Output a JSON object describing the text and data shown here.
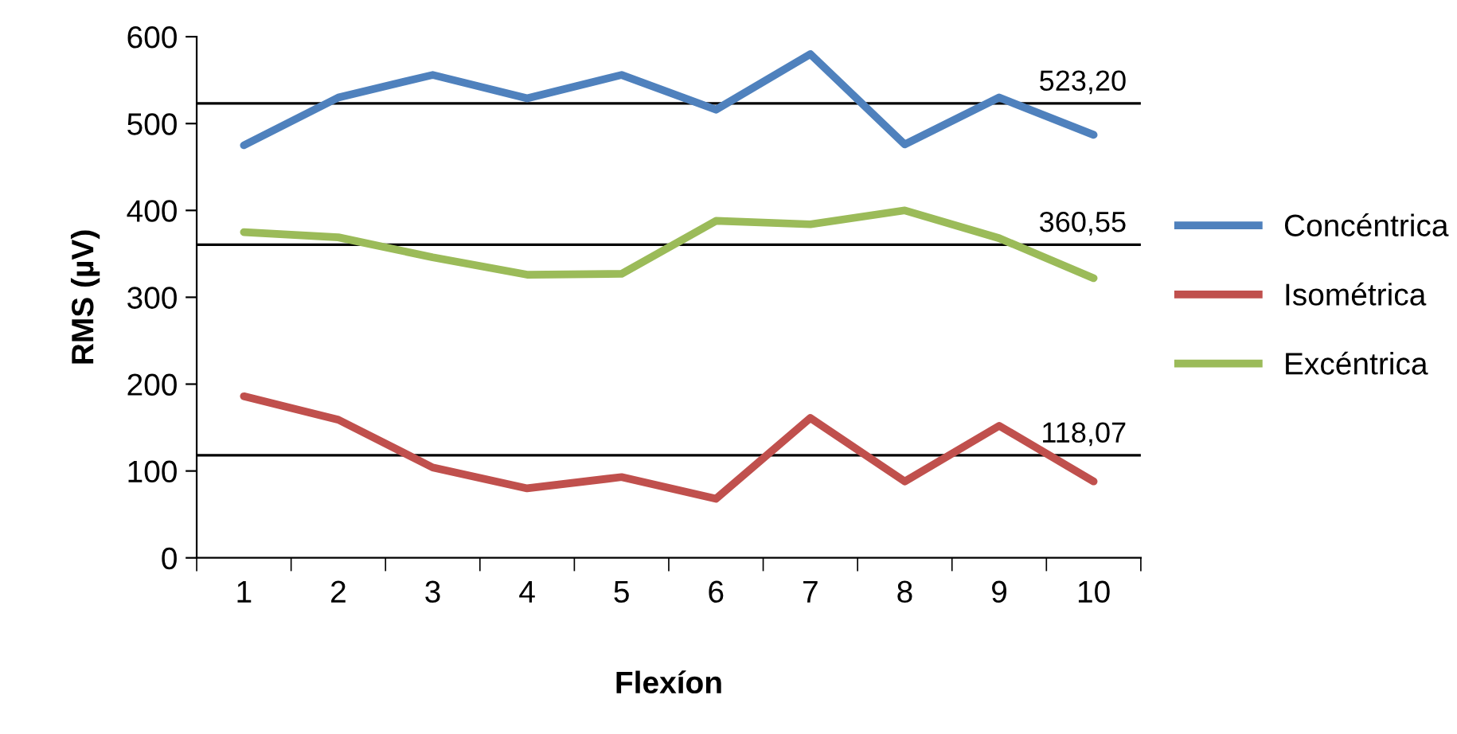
{
  "chart_data": {
    "type": "line",
    "xlabel": "Flexíon",
    "ylabel": "RMS (µV)",
    "categories": [
      "1",
      "2",
      "3",
      "4",
      "5",
      "6",
      "7",
      "8",
      "9",
      "10"
    ],
    "series": [
      {
        "name": "Concéntrica",
        "color": "#4f81bd",
        "values": [
          475,
          530,
          556,
          529,
          556,
          516,
          580,
          476,
          530,
          487
        ]
      },
      {
        "name": "Isométrica",
        "color": "#c0504d",
        "values": [
          186,
          159,
          104,
          80,
          93,
          68,
          161,
          88,
          152,
          88
        ]
      },
      {
        "name": "Excéntrica",
        "color": "#9bbb59",
        "values": [
          375,
          369,
          346,
          326,
          327,
          388,
          384,
          400,
          368,
          322
        ]
      }
    ],
    "ref_lines": [
      {
        "axis": "y",
        "value": 523.2,
        "label": "523,20",
        "color": "#000000"
      },
      {
        "axis": "y",
        "value": 360.55,
        "label": "360,55",
        "color": "#000000"
      },
      {
        "axis": "y",
        "value": 118.07,
        "label": "118,07",
        "color": "#000000"
      }
    ],
    "ylim": [
      0,
      600
    ],
    "yticks": [
      0,
      100,
      200,
      300,
      400,
      500,
      600
    ],
    "legend": "right",
    "grid": false,
    "marker": "none",
    "line_style": "solid"
  }
}
